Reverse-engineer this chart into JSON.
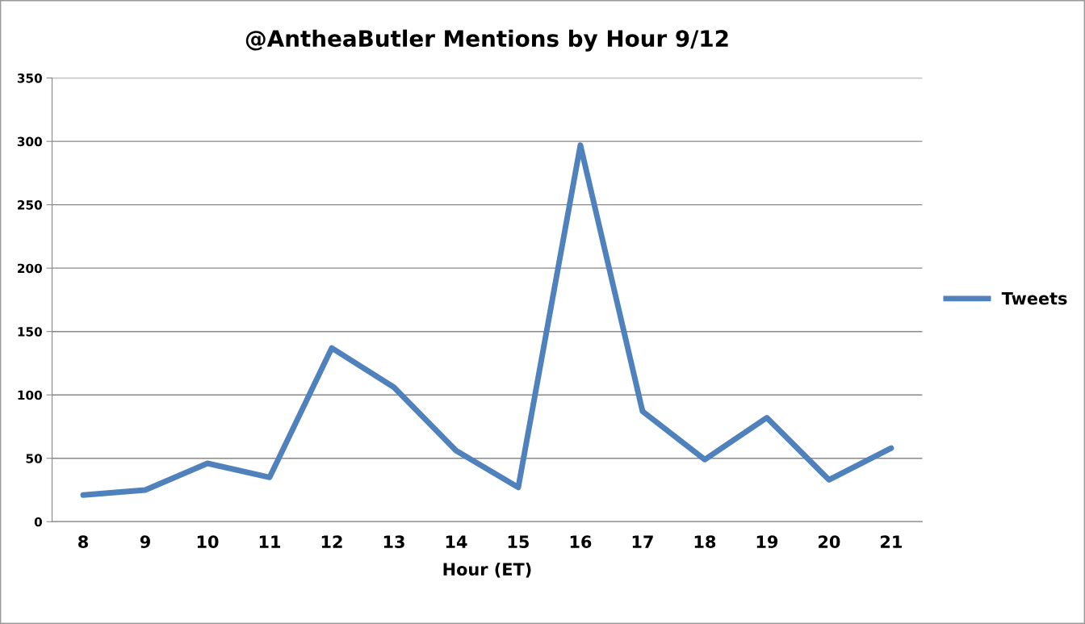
{
  "chart_data": {
    "type": "line",
    "title": "@AntheaButler Mentions by Hour 9/12",
    "xlabel": "Hour (ET)",
    "categories": [
      "8",
      "9",
      "10",
      "11",
      "12",
      "13",
      "14",
      "15",
      "16",
      "17",
      "18",
      "19",
      "20",
      "21"
    ],
    "series": [
      {
        "name": "Tweets",
        "color": "#4f81bd",
        "values": [
          21,
          25,
          46,
          35,
          137,
          106,
          56,
          27,
          297,
          87,
          49,
          82,
          33,
          58
        ]
      }
    ],
    "ylim": [
      0,
      350
    ],
    "yticks": [
      0,
      50,
      100,
      150,
      200,
      250,
      300,
      350
    ],
    "grid": "y",
    "legend": "right",
    "marker": "none",
    "line_style": "solid"
  }
}
